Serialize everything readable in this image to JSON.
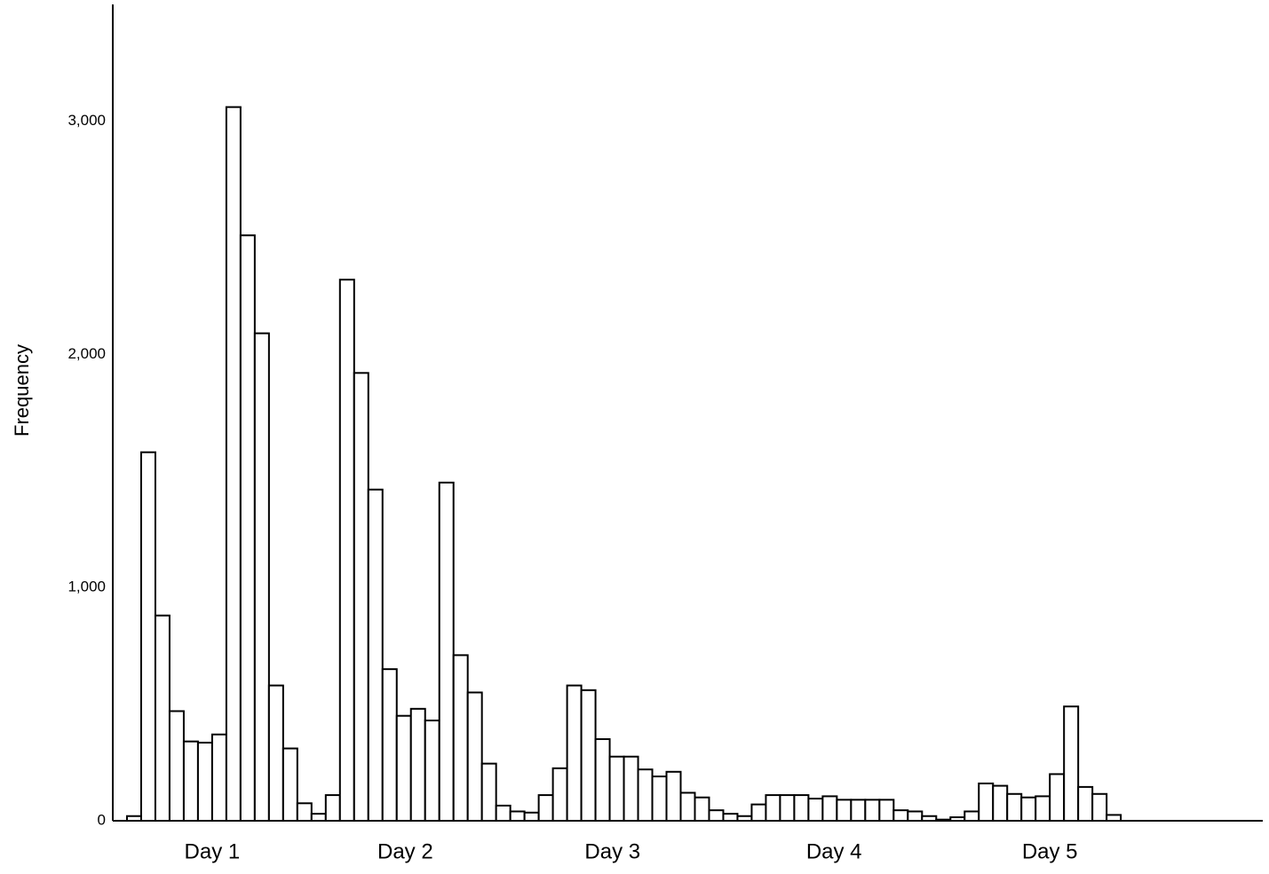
{
  "chart_data": {
    "type": "histogram",
    "y_label": "Frequency",
    "bins": [
      0,
      1,
      2,
      3,
      4,
      5,
      6,
      7,
      8,
      9,
      10,
      11,
      12,
      13,
      14,
      15,
      16,
      17,
      18,
      19,
      20,
      21,
      22,
      23,
      24,
      25,
      26,
      27,
      28,
      29,
      30,
      31,
      32,
      33,
      34,
      35,
      36,
      37,
      38,
      39,
      40,
      41,
      42,
      43,
      44,
      45,
      46,
      47,
      48,
      49,
      50,
      51,
      52,
      53,
      54,
      55,
      56,
      57,
      58,
      59,
      60,
      61,
      62,
      63,
      64,
      65,
      66,
      67,
      68,
      69,
      70
    ],
    "values": [
      20,
      1580,
      880,
      470,
      340,
      335,
      370,
      3060,
      2510,
      2090,
      580,
      310,
      75,
      30,
      110,
      2320,
      1920,
      1420,
      650,
      450,
      480,
      430,
      1450,
      710,
      550,
      245,
      65,
      40,
      35,
      110,
      225,
      580,
      560,
      350,
      275,
      275,
      220,
      190,
      210,
      120,
      100,
      45,
      30,
      20,
      70,
      110,
      110,
      110,
      95,
      105,
      90,
      90,
      90,
      90,
      45,
      40,
      20,
      5,
      15,
      40,
      160,
      150,
      115,
      100,
      105,
      200,
      490,
      145,
      115,
      25
    ],
    "color": "#ffffff",
    "edge_color": "#000000",
    "xlim": [
      -1,
      80
    ],
    "xticks": [
      {
        "value": 6,
        "label": "Day 1"
      },
      {
        "value": 19.6,
        "label": "Day 2"
      },
      {
        "value": 34.2,
        "label": "Day 3"
      },
      {
        "value": 49.8,
        "label": "Day 4"
      },
      {
        "value": 65,
        "label": "Day 5"
      }
    ],
    "ylim": [
      0,
      3500
    ],
    "yticks": [
      0,
      {
        "value": 1000,
        "label": "1,000"
      },
      {
        "value": 2000,
        "label": "2,000"
      },
      {
        "value": 3000,
        "label": "3,000"
      }
    ],
    "grid": false
  }
}
